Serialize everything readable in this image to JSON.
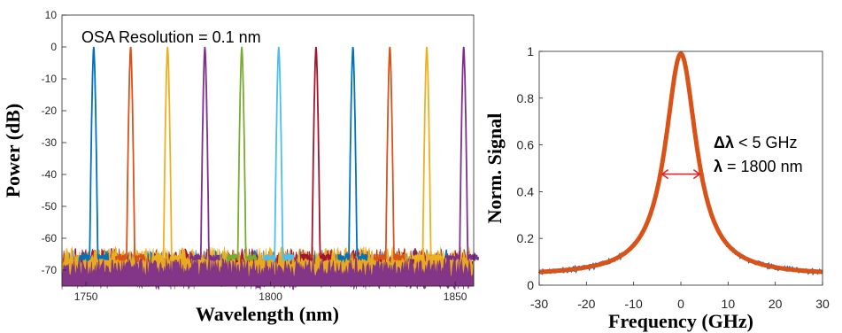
{
  "chart_data": [
    {
      "type": "line",
      "xlabel": "Wavelength (nm)",
      "ylabel": "Power (dB)",
      "xlim": [
        1743.5,
        1855
      ],
      "ylim": [
        -75,
        10
      ],
      "xticks": [
        1750,
        1800,
        1850
      ],
      "yticks": [
        10,
        0,
        -10,
        -20,
        -30,
        -40,
        -50,
        -60,
        -70
      ],
      "annotation": "OSA Resolution = 0.1 nm",
      "noise_floor_db": -68,
      "series": [
        {
          "peak_nm": 1752.1,
          "peak_db": 0,
          "color": "#0072BD"
        },
        {
          "peak_nm": 1762.1,
          "peak_db": 0,
          "color": "#D95319"
        },
        {
          "peak_nm": 1772.1,
          "peak_db": 0,
          "color": "#EDB120"
        },
        {
          "peak_nm": 1782.2,
          "peak_db": 0,
          "color": "#7E2F8E"
        },
        {
          "peak_nm": 1792.2,
          "peak_db": 0,
          "color": "#77AC30"
        },
        {
          "peak_nm": 1802.2,
          "peak_db": 0,
          "color": "#4DBEEE"
        },
        {
          "peak_nm": 1812.3,
          "peak_db": 0,
          "color": "#A2142F"
        },
        {
          "peak_nm": 1822.3,
          "peak_db": 0,
          "color": "#0072BD"
        },
        {
          "peak_nm": 1832.3,
          "peak_db": 0,
          "color": "#D95319"
        },
        {
          "peak_nm": 1842.3,
          "peak_db": 0,
          "color": "#EDB120"
        },
        {
          "peak_nm": 1852.3,
          "peak_db": 0,
          "color": "#7E2F8E"
        }
      ]
    },
    {
      "type": "line",
      "xlabel": "Frequency (GHz)",
      "ylabel": "Norm. Signal",
      "xlim": [
        -30,
        30
      ],
      "ylim": [
        0,
        1
      ],
      "xticks": [
        -30,
        -20,
        -10,
        0,
        10,
        20,
        30
      ],
      "yticks": [
        0,
        0.2,
        0.4,
        0.6,
        0.8,
        1
      ],
      "annotation_linewidth_label": "Δλ",
      "annotation_linewidth_value": " < 5 GHz",
      "annotation_wavelength_label": "λ",
      "annotation_wavelength_value": " = 1800 nm",
      "fwhm_ghz": [
        -4,
        4
      ],
      "series": [
        {
          "x": [
            -30,
            -25,
            -20,
            -15,
            -10,
            -8,
            -6,
            -4,
            -2,
            0,
            2,
            4,
            6,
            8,
            10,
            15,
            20,
            25,
            30
          ],
          "y": [
            0.04,
            0.05,
            0.06,
            0.09,
            0.16,
            0.22,
            0.31,
            0.48,
            0.79,
            0.99,
            0.79,
            0.48,
            0.31,
            0.22,
            0.16,
            0.09,
            0.06,
            0.05,
            0.04
          ],
          "color": "#D95319"
        }
      ]
    }
  ]
}
